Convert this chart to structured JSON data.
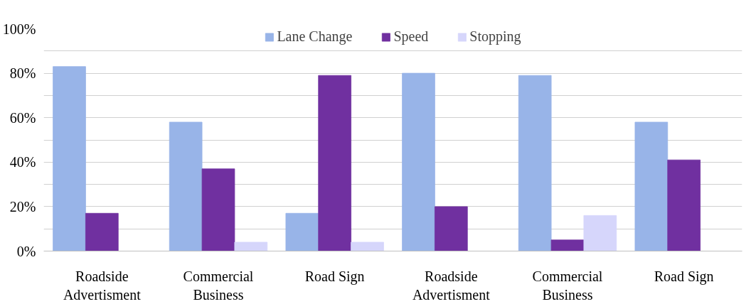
{
  "chart_data": {
    "type": "bar",
    "categories": [
      "Roadside\nAdvertisment",
      "Commercial\nBusiness",
      "Road Sign",
      "Roadside\nAdvertisment",
      "Commercial\nBusiness",
      "Road Sign"
    ],
    "series": [
      {
        "name": "Lane Change",
        "color": "#98b4e8",
        "values": [
          83,
          58,
          17,
          80,
          79,
          58
        ]
      },
      {
        "name": "Speed",
        "color": "#7030a0",
        "values": [
          17,
          37,
          79,
          20,
          5,
          41
        ]
      },
      {
        "name": "Stopping",
        "color": "#d6d6fb",
        "values": [
          0,
          4,
          4,
          0,
          16,
          0
        ]
      }
    ],
    "ylim": [
      0,
      100
    ],
    "yticks": [
      {
        "value": 0,
        "label": "0%"
      },
      {
        "value": 10,
        "label": null
      },
      {
        "value": 20,
        "label": "20%"
      },
      {
        "value": 30,
        "label": null
      },
      {
        "value": 40,
        "label": "40%"
      },
      {
        "value": 50,
        "label": null
      },
      {
        "value": 60,
        "label": "60%"
      },
      {
        "value": 70,
        "label": null
      },
      {
        "value": 80,
        "label": "80%"
      },
      {
        "value": 90,
        "label": null
      },
      {
        "value": 100,
        "label": "100%"
      }
    ],
    "grid": "y",
    "legend": "top"
  }
}
